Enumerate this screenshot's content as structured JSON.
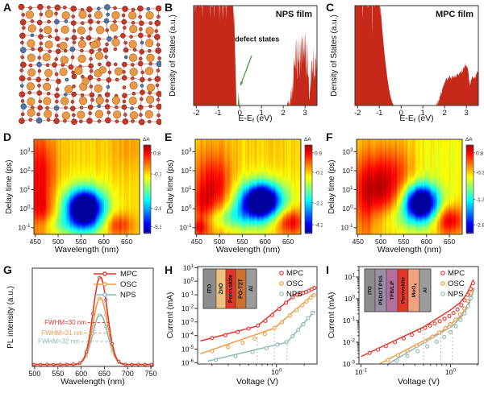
{
  "panels": [
    {
      "letter": "A"
    },
    {
      "letter": "B"
    },
    {
      "letter": "C"
    },
    {
      "letter": "D"
    },
    {
      "letter": "E"
    },
    {
      "letter": "F"
    },
    {
      "letter": "G"
    },
    {
      "letter": "H"
    },
    {
      "letter": "I"
    }
  ],
  "series_colors": {
    "MPC": "#e5352b",
    "OSC": "#f09a42",
    "NPS": "#8ab9b5"
  },
  "chart_data": {
    "A": {
      "type": "other",
      "description": "crystal lattice schematic with large cations, framework atoms, dopant atoms and bonds; disordered central region",
      "atom_colors": {
        "large_cation": "#e89a49",
        "framework": "#bf3a2b",
        "dopant": "#4e74a8"
      },
      "bond_color": "#d18e86"
    },
    "B": {
      "type": "area",
      "title": "NPS film",
      "xlabel_base": "E-E",
      "xlabel_sub": "f",
      "xlabel_unit": " (eV)",
      "ylabel": "Density of States (a.u.)",
      "xticks": [
        -2,
        -1,
        0,
        1,
        2,
        3
      ],
      "xrange": [
        -2.12,
        3.55
      ],
      "valence_band_edge_eV": -0.15,
      "conduction_band_edge_eV": 2.15,
      "defect_state_energy_eV": -0.05,
      "annotation": "defect states",
      "fill_color": "#c6291a",
      "defect_color": "#2f9e3f"
    },
    "C": {
      "type": "area",
      "title": "MPC film",
      "xlabel_base": "E-E",
      "xlabel_sub": "f",
      "xlabel_unit": " (eV)",
      "ylabel": "Density of States (a.u.)",
      "xticks": [
        -2,
        -1,
        0,
        1,
        2,
        3
      ],
      "xrange": [
        -2.12,
        3.55
      ],
      "valence_band_edge_eV": -0.45,
      "conduction_band_edge_eV": 1.6,
      "fill_color": "#c6291a"
    },
    "D": {
      "type": "heatmap",
      "xlabel": "Wavelength (nm)",
      "ylabel": "Delay time (ps)",
      "xticks": [
        450,
        500,
        550,
        600,
        650
      ],
      "xrange": [
        447,
        678
      ],
      "ylog_ticks": [
        -1,
        0,
        1,
        2,
        3
      ],
      "ylog_range": [
        -1.35,
        3.65
      ],
      "colorbar": {
        "label": "ΔA",
        "ticks": [
          {
            "pos": 0.09,
            "label": "0.8"
          },
          {
            "pos": 0.33,
            "label": "-0.3"
          },
          {
            "pos": 0.72,
            "label": "-2.8"
          },
          {
            "pos": 0.93,
            "label": "-5.3"
          }
        ]
      },
      "base_level": 0.67,
      "noise_seed": 11,
      "gaussian_features_nm_log10ps_sx_sy_amp": [
        [
          455,
          1.2,
          26,
          2.2,
          0.16
        ],
        [
          468,
          -0.1,
          16,
          0.7,
          0.1
        ],
        [
          470,
          2.0,
          18,
          1.2,
          0.08
        ],
        [
          628,
          -0.85,
          26,
          0.42,
          0.24
        ],
        [
          558,
          0.05,
          26,
          0.62,
          -0.78
        ],
        [
          558,
          0.0,
          46,
          1.05,
          -0.17
        ],
        [
          545,
          -0.85,
          65,
          0.38,
          -0.14
        ],
        [
          660,
          3.2,
          30,
          0.8,
          0.05
        ]
      ]
    },
    "E": {
      "type": "heatmap",
      "xlabel": "Wavelength (nm)",
      "ylabel": "Delay time (ps)",
      "xticks": [
        450,
        500,
        550,
        600,
        650
      ],
      "xrange": [
        447,
        678
      ],
      "ylog_ticks": [
        -1,
        0,
        1,
        2,
        3
      ],
      "ylog_range": [
        -1.35,
        3.65
      ],
      "colorbar": {
        "label": "ΔA",
        "ticks": [
          {
            "pos": 0.09,
            "label": "0.9"
          },
          {
            "pos": 0.31,
            "label": "-0.2"
          },
          {
            "pos": 0.66,
            "label": "-2.2"
          },
          {
            "pos": 0.91,
            "label": "-4.2"
          }
        ]
      },
      "base_level": 0.67,
      "noise_seed": 23,
      "gaussian_features_nm_log10ps_sx_sy_amp": [
        [
          478,
          0.9,
          30,
          1.5,
          0.18
        ],
        [
          462,
          -0.2,
          16,
          0.9,
          0.1
        ],
        [
          500,
          1.2,
          22,
          1.0,
          0.08
        ],
        [
          655,
          -0.68,
          22,
          0.5,
          0.26
        ],
        [
          592,
          0.42,
          28,
          0.6,
          -0.75
        ],
        [
          588,
          0.3,
          48,
          0.95,
          -0.19
        ],
        [
          505,
          -0.55,
          38,
          0.42,
          -0.13
        ],
        [
          548,
          -0.25,
          35,
          0.5,
          -0.12
        ],
        [
          455,
          -1.0,
          12,
          0.3,
          0.14
        ]
      ]
    },
    "F": {
      "type": "heatmap",
      "xlabel": "Wavelength (nm)",
      "ylabel": "Delay time (ps)",
      "xticks": [
        450,
        500,
        550,
        600,
        650
      ],
      "xrange": [
        447,
        678
      ],
      "ylog_ticks": [
        -1,
        0,
        1,
        2,
        3
      ],
      "ylog_range": [
        -1.35,
        3.65
      ],
      "colorbar": {
        "label": "ΔA",
        "ticks": [
          {
            "pos": 0.09,
            "label": "0.8"
          },
          {
            "pos": 0.31,
            "label": "-0.3"
          },
          {
            "pos": 0.62,
            "label": "-1.3"
          },
          {
            "pos": 0.91,
            "label": "-2.8"
          }
        ]
      },
      "base_level": 0.665,
      "noise_seed": 37,
      "gaussian_features_nm_log10ps_sx_sy_amp": [
        [
          495,
          1.4,
          42,
          1.2,
          0.2
        ],
        [
          515,
          0.6,
          28,
          0.9,
          0.1
        ],
        [
          465,
          0.0,
          18,
          1.4,
          0.1
        ],
        [
          540,
          2.2,
          30,
          1.0,
          0.07
        ],
        [
          650,
          -0.6,
          22,
          0.55,
          0.28
        ],
        [
          588,
          0.32,
          24,
          0.6,
          -0.7
        ],
        [
          586,
          0.25,
          42,
          0.95,
          -0.17
        ],
        [
          545,
          -0.5,
          40,
          0.5,
          -0.09
        ],
        [
          620,
          2.8,
          55,
          1.0,
          -0.05
        ]
      ]
    },
    "G": {
      "type": "line",
      "xlabel": "Wavelength (nm)",
      "ylabel": "PL intensity (a.u.)",
      "xticks": [
        500,
        550,
        600,
        650,
        700,
        750
      ],
      "xrange": [
        495,
        755
      ],
      "peak_center_nm": 641,
      "legend": [
        "MPC",
        "OSC",
        "NPS"
      ],
      "series": [
        {
          "name": "MPC",
          "color": "#e5352b",
          "relative_height": 1.0,
          "fwhm_nm": 30,
          "fwhm_label": "FWHM=30 nm",
          "label_x_nm": 611,
          "dash_x_nm": [
            614,
            662
          ]
        },
        {
          "name": "OSC",
          "color": "#f09a42",
          "relative_height": 0.76,
          "fwhm_nm": 31,
          "fwhm_label": "FWHM=31 nm",
          "label_x_nm": 604,
          "dash_x_nm": [
            607,
            664
          ]
        },
        {
          "name": "NPS",
          "color": "#8ab9b5",
          "relative_height": 0.57,
          "fwhm_nm": 32,
          "fwhm_label": "FWHM=32 nm",
          "label_x_nm": 597,
          "dash_x_nm": [
            600,
            667
          ]
        }
      ]
    },
    "H": {
      "type": "scatter",
      "xlabel": "Voltage (V)",
      "ylabel": "Current (mA)",
      "xlog_ticks": [
        0
      ],
      "ylog_ticks": [
        1,
        0,
        -1,
        -2,
        -3,
        -4,
        -5,
        -6
      ],
      "xrange": [
        0.14,
        2.75
      ],
      "yrange": [
        8e-07,
        12.0
      ],
      "legend": [
        "MPC",
        "OSC",
        "NPS"
      ],
      "kink_voltages": [
        0.62,
        0.95,
        1.3
      ],
      "kink_currents": [
        0.0005,
        0.00035,
        3.2e-05
      ],
      "device_stack": {
        "layers": [
          {
            "name": "ITO",
            "color": "#8d8d8d",
            "w": 16
          },
          {
            "name": "ZnO",
            "color": "#eec27c",
            "w": 12
          },
          {
            "name": "Perovskite",
            "color": "#e5352b",
            "w": 12
          },
          {
            "name": "PO-T2T",
            "color": "#cf7033",
            "w": 13
          },
          {
            "name": "Al",
            "color": "#9c9c9c",
            "w": 13
          }
        ]
      },
      "series": [
        {
          "name": "MPC",
          "color": "#e5352b",
          "line": [
            [
              0.15,
              4e-05
            ],
            [
              0.62,
              0.0005
            ],
            [
              1.6,
              0.1
            ],
            [
              2.6,
              0.34
            ]
          ],
          "points": [
            [
              0.2,
              6.5e-05
            ],
            [
              0.28,
              0.000105
            ],
            [
              0.38,
              0.00018
            ],
            [
              0.5,
              0.00032
            ],
            [
              0.63,
              0.00055
            ],
            [
              0.76,
              0.0012
            ],
            [
              0.9,
              0.0032
            ],
            [
              1.07,
              0.009
            ],
            [
              1.27,
              0.026
            ],
            [
              1.5,
              0.065
            ],
            [
              1.68,
              0.1
            ],
            [
              1.82,
              0.12
            ],
            [
              1.95,
              0.135
            ],
            [
              2.1,
              0.16
            ],
            [
              2.25,
              0.2
            ],
            [
              2.42,
              0.26
            ],
            [
              2.58,
              0.32
            ]
          ]
        },
        {
          "name": "OSC",
          "color": "#f09a42",
          "line": [
            [
              0.15,
              4.5e-06
            ],
            [
              0.95,
              0.00035
            ],
            [
              2.6,
              0.13
            ]
          ],
          "points": [
            [
              0.2,
              7e-06
            ],
            [
              0.3,
              1.4e-05
            ],
            [
              0.43,
              2.9e-05
            ],
            [
              0.58,
              6e-05
            ],
            [
              0.75,
              0.00013
            ],
            [
              0.95,
              0.00036
            ],
            [
              1.15,
              0.00095
            ],
            [
              1.4,
              0.0029
            ],
            [
              1.65,
              0.0075
            ],
            [
              1.9,
              0.017
            ],
            [
              2.12,
              0.032
            ],
            [
              2.35,
              0.06
            ],
            [
              2.55,
              0.095
            ]
          ]
        },
        {
          "name": "NPS",
          "color": "#8ab9b5",
          "line": [
            [
              0.18,
              1.3e-06
            ],
            [
              1.3,
              3.2e-05
            ],
            [
              2.6,
              0.0065
            ]
          ],
          "points": [
            [
              0.22,
              1.6e-06
            ],
            [
              0.36,
              3e-06
            ],
            [
              0.55,
              6e-06
            ],
            [
              0.78,
              1.15e-05
            ],
            [
              1.02,
              2.1e-05
            ],
            [
              1.28,
              3.3e-05
            ],
            [
              1.5,
              9e-05
            ],
            [
              1.72,
              0.00026
            ],
            [
              1.95,
              0.0007
            ],
            [
              2.2,
              0.0019
            ],
            [
              2.45,
              0.0046
            ]
          ]
        }
      ]
    },
    "I": {
      "type": "scatter",
      "xlabel": "Voltage (V)",
      "ylabel": "Current (mA)",
      "xlog_ticks": [
        -1,
        0
      ],
      "ylog_ticks": [
        1,
        0,
        -1,
        -2,
        -3
      ],
      "xrange": [
        0.095,
        2.05
      ],
      "yrange": [
        0.001,
        30.0
      ],
      "legend": [
        "MPC",
        "OSC",
        "NPS"
      ],
      "kink_voltages": [
        0.5,
        0.78,
        1.05
      ],
      "kink_currents": [
        0.05,
        0.03,
        0.055
      ],
      "device_stack": {
        "layers": [
          {
            "name": "ITO",
            "color": "#8d8d8d",
            "w": 13
          },
          {
            "name": "PEDOT:PSS",
            "color": "#9b8fa6",
            "w": 14
          },
          {
            "name": "TFB/LiF",
            "color": "#b4709c",
            "w": 14
          },
          {
            "name": "Perovskite",
            "color": "#e5352b",
            "w": 13
          },
          {
            "name": "MoOx",
            "base": "MoO",
            "sub": "x",
            "color": "#f2a17e",
            "w": 14
          },
          {
            "name": "Al",
            "color": "#9c9c9c",
            "w": 14
          }
        ]
      },
      "series": [
        {
          "name": "MPC",
          "color": "#e5352b",
          "line": [
            [
              0.1,
              0.0022
            ],
            [
              0.5,
              0.05
            ],
            [
              1.0,
              0.3
            ],
            [
              1.3,
              0.7
            ],
            [
              1.5,
              1.5
            ],
            [
              1.65,
              3.2
            ],
            [
              1.8,
              7.5
            ]
          ],
          "points": [
            [
              0.125,
              0.0032
            ],
            [
              0.155,
              0.0046
            ],
            [
              0.19,
              0.0066
            ],
            [
              0.24,
              0.01
            ],
            [
              0.3,
              0.015
            ],
            [
              0.37,
              0.022
            ],
            [
              0.45,
              0.034
            ],
            [
              0.52,
              0.046
            ],
            [
              0.59,
              0.058
            ],
            [
              0.67,
              0.072
            ],
            [
              0.76,
              0.092
            ],
            [
              0.86,
              0.12
            ],
            [
              0.97,
              0.16
            ],
            [
              1.08,
              0.22
            ],
            [
              1.2,
              0.32
            ],
            [
              1.32,
              0.5
            ],
            [
              1.44,
              0.85
            ],
            [
              1.56,
              1.5
            ],
            [
              1.68,
              2.8
            ],
            [
              1.79,
              5.2
            ]
          ]
        },
        {
          "name": "OSC",
          "color": "#f09a42",
          "line": [
            [
              0.16,
              0.001
            ],
            [
              0.78,
              0.03
            ],
            [
              1.3,
              0.16
            ],
            [
              1.55,
              0.5
            ],
            [
              1.7,
              1.3
            ],
            [
              1.82,
              3.2
            ]
          ],
          "points": [
            [
              0.2,
              0.0015
            ],
            [
              0.26,
              0.0025
            ],
            [
              0.33,
              0.0041
            ],
            [
              0.42,
              0.0068
            ],
            [
              0.52,
              0.011
            ],
            [
              0.63,
              0.018
            ],
            [
              0.75,
              0.028
            ],
            [
              0.88,
              0.044
            ],
            [
              1.0,
              0.068
            ],
            [
              1.14,
              0.11
            ],
            [
              1.28,
              0.19
            ],
            [
              1.42,
              0.36
            ],
            [
              1.56,
              0.78
            ],
            [
              1.7,
              1.8
            ]
          ]
        },
        {
          "name": "NPS",
          "color": "#8ab9b5",
          "line": [
            [
              0.2,
              0.001
            ],
            [
              1.05,
              0.055
            ],
            [
              1.45,
              0.22
            ],
            [
              1.62,
              0.6
            ],
            [
              1.75,
              1.5
            ],
            [
              1.85,
              3.0
            ]
          ],
          "points": [
            [
              0.25,
              0.0014
            ],
            [
              0.33,
              0.0023
            ],
            [
              0.43,
              0.0039
            ],
            [
              0.55,
              0.0064
            ],
            [
              0.7,
              0.0105
            ],
            [
              0.85,
              0.0175
            ],
            [
              1.0,
              0.029
            ],
            [
              1.15,
              0.054
            ],
            [
              1.3,
              0.105
            ],
            [
              1.44,
              0.21
            ],
            [
              1.57,
              0.46
            ],
            [
              1.69,
              1.05
            ]
          ]
        }
      ]
    }
  }
}
